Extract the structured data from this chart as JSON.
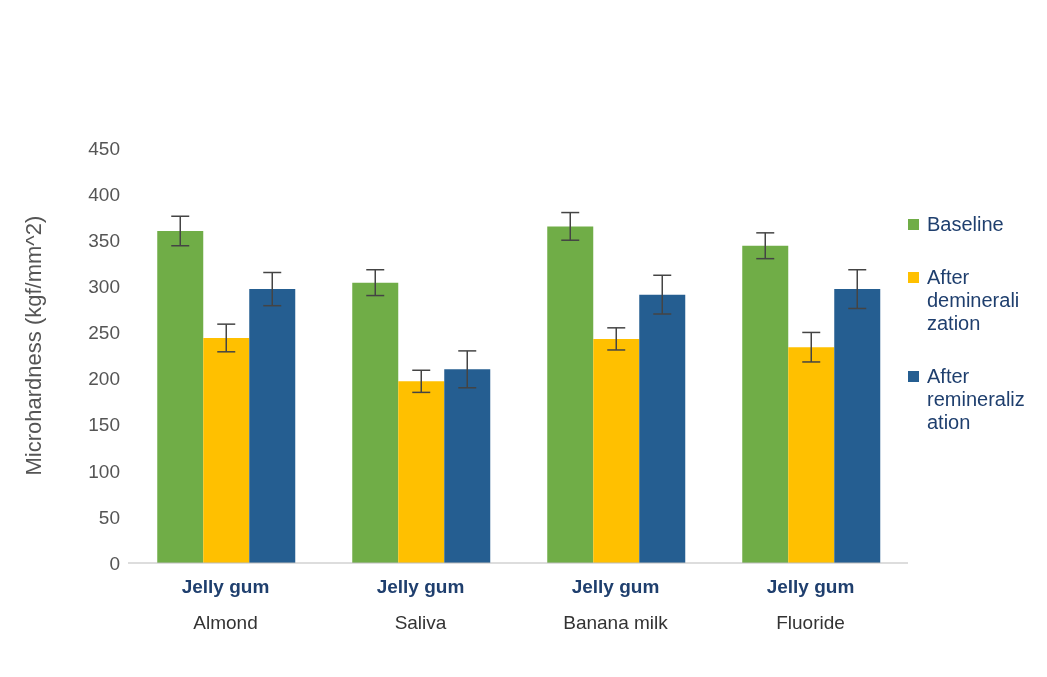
{
  "chart_data": {
    "type": "bar",
    "ylabel": "Microhardness (kgf/mm^2)",
    "categories": [
      "Jelly gum\nAlmond",
      "Jelly gum\nSaliva",
      "Jelly gum\nBanana milk",
      "Jelly gum\nFluoride"
    ],
    "series": [
      {
        "name": "Baseline",
        "color": "#70ad47",
        "values": [
          360,
          304,
          365,
          344
        ],
        "errors": [
          16,
          14,
          15,
          14
        ]
      },
      {
        "name": "After demineralization",
        "color": "#ffc000",
        "values": [
          244,
          197,
          243,
          234
        ],
        "errors": [
          15,
          12,
          12,
          16
        ]
      },
      {
        "name": "After remineralization",
        "color": "#255e91",
        "values": [
          297,
          210,
          291,
          297
        ],
        "errors": [
          18,
          20,
          21,
          21
        ]
      }
    ],
    "ylim": [
      0,
      450
    ],
    "yticks": [
      0,
      50,
      100,
      150,
      200,
      250,
      300,
      350,
      400,
      450
    ],
    "grid": false,
    "legend": "right"
  }
}
